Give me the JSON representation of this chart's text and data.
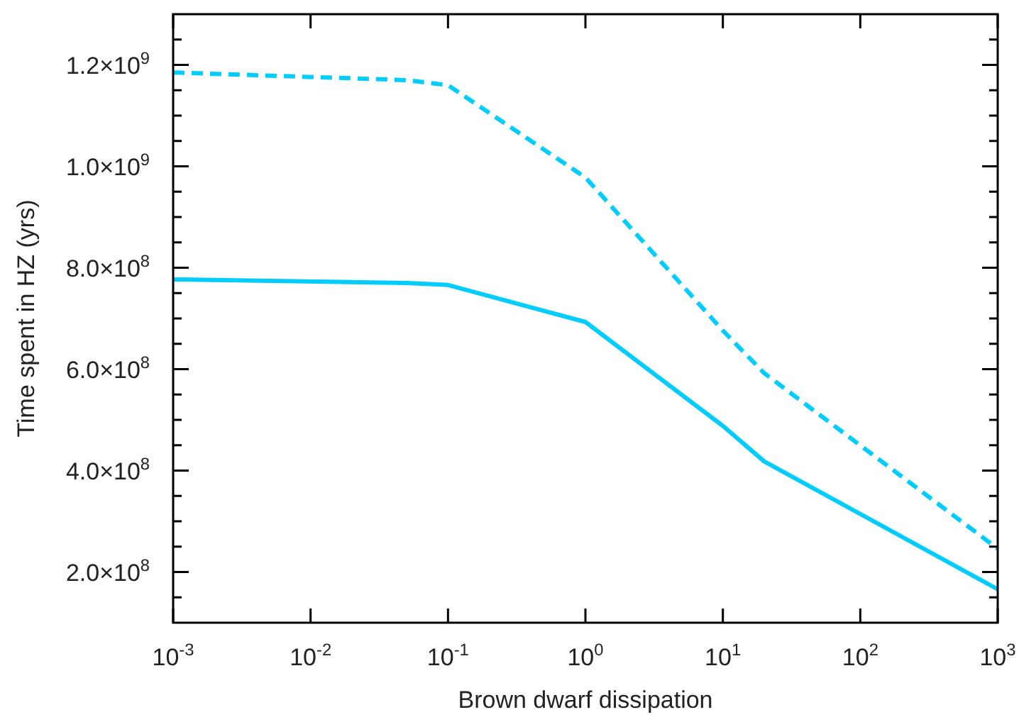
{
  "chart_data": {
    "type": "line",
    "xlabel": "Brown dwarf dissipation",
    "ylabel": "Time spent in HZ (yrs)",
    "log": "x",
    "xlim": [
      0.001,
      1000
    ],
    "xticks": [
      {
        "value": 0.001,
        "label": "10$^{-3}$"
      },
      {
        "value": 0.01,
        "label": "10$^{-2}$"
      },
      {
        "value": 0.1,
        "label": "10$^{-1}$"
      },
      {
        "value": 1,
        "label": "10$^{0}$"
      },
      {
        "value": 10,
        "label": "10$^{1}$"
      },
      {
        "value": 100,
        "label": "10$^{2}$"
      },
      {
        "value": 1000,
        "label": "10$^{3}$"
      }
    ],
    "ylim": [
      100000000,
      1300000000
    ],
    "yticks": [
      {
        "value": 150000000,
        "label": null
      },
      {
        "value": 200000000,
        "label": "2.0×10$^{8}$"
      },
      {
        "value": 250000000,
        "label": null
      },
      {
        "value": 300000000,
        "label": null
      },
      {
        "value": 350000000,
        "label": null
      },
      {
        "value": 400000000,
        "label": "4.0×10$^{8}$"
      },
      {
        "value": 450000000,
        "label": null
      },
      {
        "value": 500000000,
        "label": null
      },
      {
        "value": 550000000,
        "label": null
      },
      {
        "value": 600000000,
        "label": "6.0×10$^{8}$"
      },
      {
        "value": 650000000,
        "label": null
      },
      {
        "value": 700000000,
        "label": null
      },
      {
        "value": 750000000,
        "label": null
      },
      {
        "value": 800000000,
        "label": "8.0×10$^{8}$"
      },
      {
        "value": 850000000,
        "label": null
      },
      {
        "value": 900000000,
        "label": null
      },
      {
        "value": 950000000,
        "label": null
      },
      {
        "value": 1000000000,
        "label": "1.0×10$^{9}$"
      },
      {
        "value": 1050000000,
        "label": null
      },
      {
        "value": 1100000000,
        "label": null
      },
      {
        "value": 1150000000,
        "label": null
      },
      {
        "value": 1200000000,
        "label": "1.2×10$^{9}$"
      },
      {
        "value": 1250000000,
        "label": null
      }
    ],
    "series": [
      {
        "color": "#00ccff",
        "line_style": "solid",
        "x": [
          0.001,
          0.05,
          0.1,
          1,
          10,
          20,
          1000
        ],
        "values": [
          777000000,
          770000000,
          766000000,
          693000000,
          488000000,
          418000000,
          166000000
        ]
      },
      {
        "color": "#00ccff",
        "line_style": "dashed",
        "x": [
          0.001,
          0.05,
          0.1,
          1,
          10,
          20,
          1000
        ],
        "values": [
          1185000000,
          1170000000,
          1160000000,
          978000000,
          676000000,
          592000000,
          246000000
        ]
      }
    ]
  }
}
